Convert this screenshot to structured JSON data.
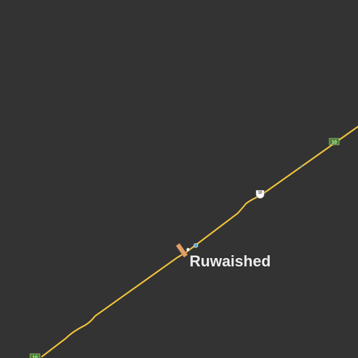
{
  "map": {
    "background_color": "#333333",
    "road_color": "#f0c23c",
    "place": {
      "name": "Ruwaished"
    },
    "route_shields": [
      {
        "ref": "10",
        "icon": "route-shield-green",
        "color": "#3f7e2a"
      },
      {
        "ref": "10",
        "icon": "route-shield-green",
        "color": "#3f7e2a"
      }
    ],
    "waypoint_marker": {
      "ref": "10",
      "icon": "route-marker-white"
    },
    "poi_icons": [
      "fuel-station-icon",
      "airport-icon",
      "info-icon"
    ]
  }
}
